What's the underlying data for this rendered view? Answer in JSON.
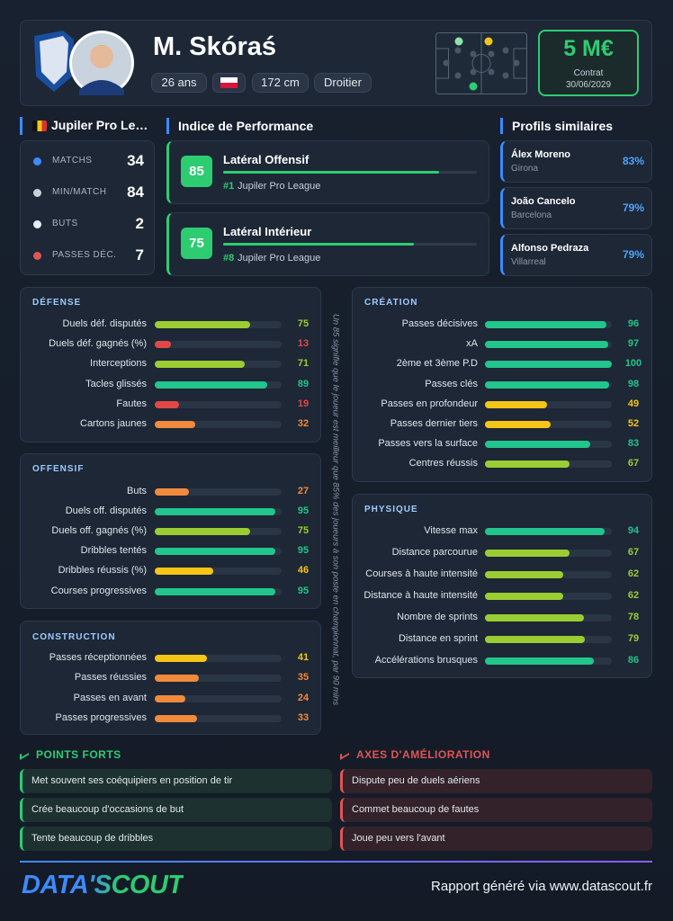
{
  "header": {
    "name": "M. Skóraś",
    "age": "26 ans",
    "height": "172 cm",
    "foot": "Droitier",
    "value": "5 M€",
    "contract_label": "Contrat",
    "contract_date": "30/06/2029"
  },
  "league": {
    "title": "Jupiler Pro League",
    "stats": [
      {
        "label": "MATCHS",
        "value": 34
      },
      {
        "label": "MIN/MATCH",
        "value": 84
      },
      {
        "label": "BUTS",
        "value": 2
      },
      {
        "label": "PASSES DÉC.",
        "value": 7
      }
    ]
  },
  "performance": {
    "title": "Indice de Performance",
    "items": [
      {
        "score": 85,
        "role": "Latéral Offensif",
        "rank": "#1",
        "league": "Jupiler Pro League"
      },
      {
        "score": 75,
        "role": "Latéral Intérieur",
        "rank": "#8",
        "league": "Jupiler Pro League"
      }
    ]
  },
  "similar": {
    "title": "Profils similaires",
    "items": [
      {
        "name": "Álex Moreno",
        "club": "Girona",
        "match": "83%"
      },
      {
        "name": "João Cancelo",
        "club": "Barcelona",
        "match": "79%"
      },
      {
        "name": "Alfonso Pedraza",
        "club": "Villarreal",
        "match": "79%"
      }
    ]
  },
  "sections": [
    {
      "title": "DÉFENSE",
      "rows": [
        {
          "label": "Duels déf. disputés",
          "value": 75
        },
        {
          "label": "Duels déf. gagnés (%)",
          "value": 13
        },
        {
          "label": "Interceptions",
          "value": 71
        },
        {
          "label": "Tacles glissés",
          "value": 89
        },
        {
          "label": "Fautes",
          "value": 19
        },
        {
          "label": "Cartons jaunes",
          "value": 32
        }
      ]
    },
    {
      "title": "OFFENSIF",
      "rows": [
        {
          "label": "Buts",
          "value": 27
        },
        {
          "label": "Duels off. disputés",
          "value": 95
        },
        {
          "label": "Duels off. gagnés (%)",
          "value": 75
        },
        {
          "label": "Dribbles tentés",
          "value": 95
        },
        {
          "label": "Dribbles réussis (%)",
          "value": 46
        },
        {
          "label": "Courses progressives",
          "value": 95
        }
      ]
    },
    {
      "title": "CONSTRUCTION",
      "rows": [
        {
          "label": "Passes réceptionnées",
          "value": 41
        },
        {
          "label": "Passes réussies",
          "value": 35
        },
        {
          "label": "Passes en avant",
          "value": 24
        },
        {
          "label": "Passes progressives",
          "value": 33
        }
      ]
    },
    {
      "title": "CRÉATION",
      "rows": [
        {
          "label": "Passes décisives",
          "value": 96
        },
        {
          "label": "xA",
          "value": 97
        },
        {
          "label": "2ème et 3ème P.D",
          "value": 100
        },
        {
          "label": "Passes clés",
          "value": 98
        },
        {
          "label": "Passes en profondeur",
          "value": 49
        },
        {
          "label": "Passes dernier tiers",
          "value": 52
        },
        {
          "label": "Passes vers la surface",
          "value": 83
        },
        {
          "label": "Centres réussis",
          "value": 67
        }
      ]
    },
    {
      "title": "PHYSIQUE",
      "rows": [
        {
          "label": "Vitesse max",
          "value": 94
        },
        {
          "label": "Distance parcourue",
          "value": 67
        },
        {
          "label": "Courses à haute intensité",
          "value": 62
        },
        {
          "label": "Distance à haute intensité",
          "value": 62
        },
        {
          "label": "Nombre de sprints",
          "value": 78
        },
        {
          "label": "Distance en sprint",
          "value": 79
        },
        {
          "label": "Accélérations brusques",
          "value": 86
        }
      ]
    }
  ],
  "note": "Un 85 signifie que le joueur est meilleur que 85% des joueurs à son poste en championnat, par 90 mins",
  "strengths": {
    "title": "POINTS FORTS",
    "items": [
      "Met souvent ses coéquipiers en position de tir",
      "Crée beaucoup d'occasions de but",
      "Tente beaucoup de dribbles"
    ]
  },
  "improvements": {
    "title": "AXES D'AMÉLIORATION",
    "items": [
      "Dispute peu de duels aériens",
      "Commet beaucoup de fautes",
      "Joue peu vers l'avant"
    ]
  },
  "footer": {
    "logo": "DATA'SCOUT",
    "text": "Rapport généré via www.datascout.fr"
  }
}
